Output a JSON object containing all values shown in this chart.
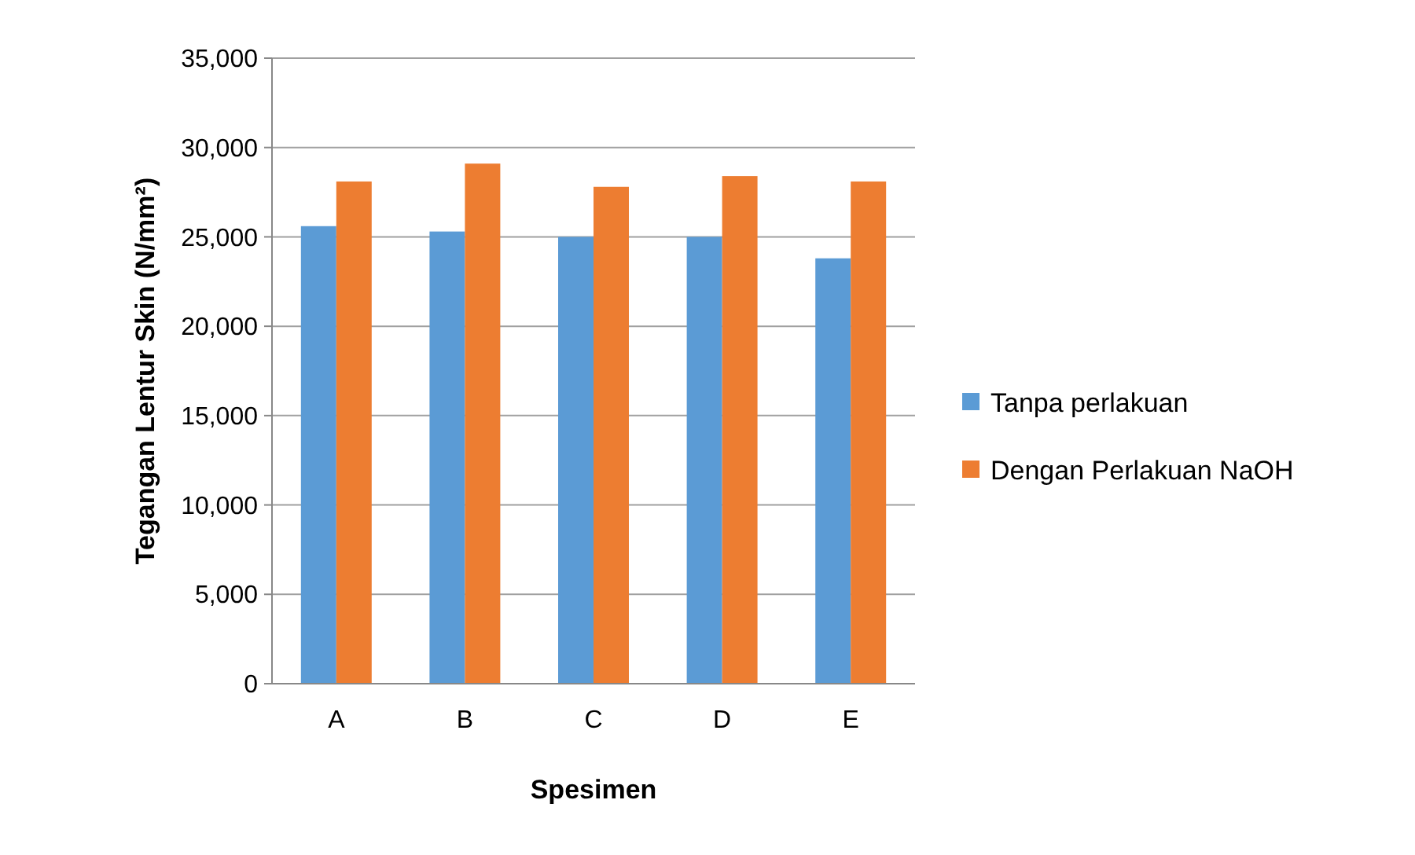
{
  "chart_data": {
    "type": "bar",
    "xlabel": "Spesimen",
    "ylabel": "Tegangan Lentur Skin (N/mm²)",
    "categories": [
      "A",
      "B",
      "C",
      "D",
      "E"
    ],
    "series": [
      {
        "name": "Tanpa perlakuan",
        "color": "#5b9bd5",
        "values": [
          25600,
          25300,
          25000,
          25000,
          23800
        ]
      },
      {
        "name": "Dengan Perlakuan NaOH",
        "color": "#ed7d31",
        "values": [
          28100,
          29100,
          27800,
          28400,
          28100
        ]
      }
    ],
    "ylim": [
      0,
      35000
    ],
    "yticks": [
      0,
      {
        "value": 5000,
        "label": "5,000"
      },
      {
        "value": 10000,
        "label": "10,000"
      },
      {
        "value": 15000,
        "label": "15,000"
      },
      {
        "value": 20000,
        "label": "20,000"
      },
      {
        "value": 25000,
        "label": "25,000"
      },
      {
        "value": 30000,
        "label": "30,000"
      },
      {
        "value": 35000,
        "label": "35,000"
      }
    ],
    "grid": "y",
    "legend": "right"
  }
}
